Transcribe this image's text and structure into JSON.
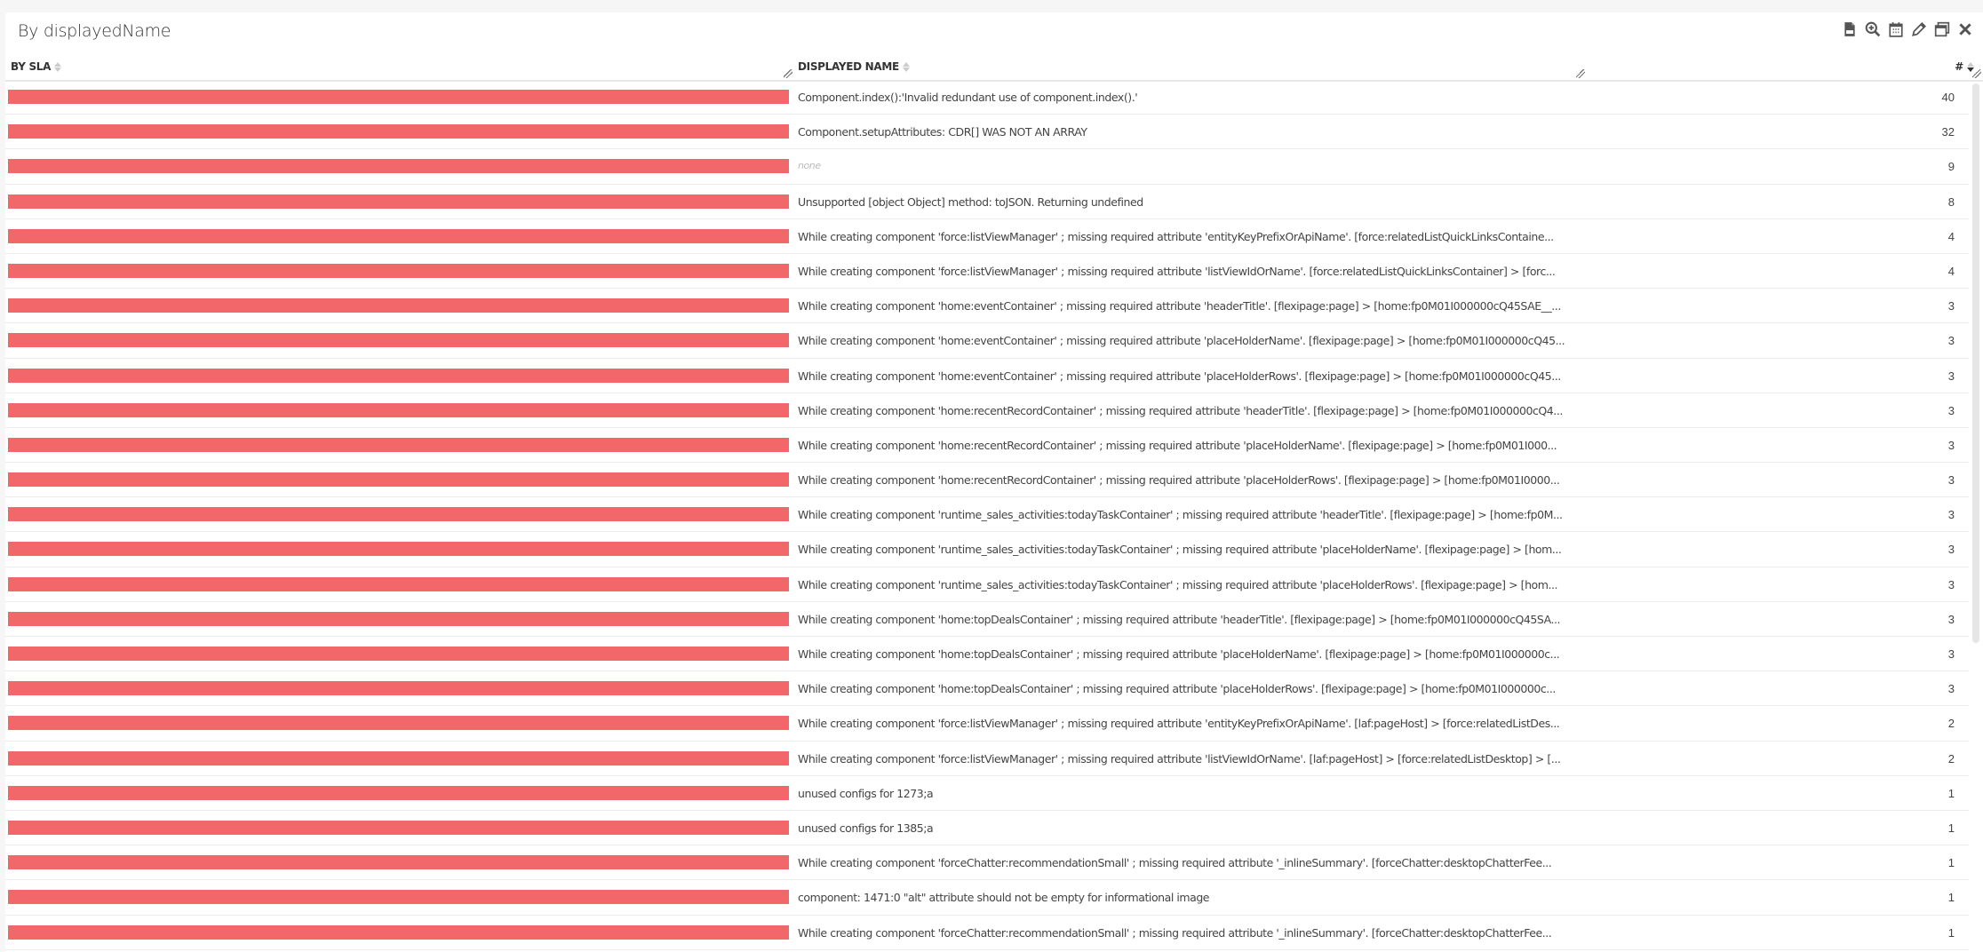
{
  "panel": {
    "title": "By displayedName",
    "toolbar": [
      {
        "name": "csv-export-icon"
      },
      {
        "name": "zoom-in-icon"
      },
      {
        "name": "calendar-icon"
      },
      {
        "name": "pencil-icon"
      },
      {
        "name": "window-icon"
      },
      {
        "name": "close-icon"
      }
    ]
  },
  "table": {
    "columns": {
      "sla": "BY SLA",
      "name": "DISPLAYED NAME",
      "count": "#"
    },
    "bar_color": "#f2686a",
    "rows": [
      {
        "name": "Component.index():'Invalid redundant use of component.index().'",
        "count": "40"
      },
      {
        "name": "Component.setupAttributes: CDR[] WAS NOT AN ARRAY",
        "count": "32"
      },
      {
        "name": "none",
        "count": "9",
        "placeholder": true
      },
      {
        "name": "Unsupported [object Object] method: toJSON. Returning undefined",
        "count": "8"
      },
      {
        "name": "While creating component 'force:listViewManager' ; missing required attribute 'entityKeyPrefixOrApiName'. [force:relatedListQuickLinksContaine...",
        "count": "4"
      },
      {
        "name": "While creating component 'force:listViewManager' ; missing required attribute 'listViewIdOrName'. [force:relatedListQuickLinksContainer] > [forc...",
        "count": "4"
      },
      {
        "name": "While creating component 'home:eventContainer' ; missing required attribute 'headerTitle'. [flexipage:page] > [home:fp0M01I000000cQ45SAE__...",
        "count": "3"
      },
      {
        "name": "While creating component 'home:eventContainer' ; missing required attribute 'placeHolderName'. [flexipage:page] > [home:fp0M01I000000cQ45...",
        "count": "3"
      },
      {
        "name": "While creating component 'home:eventContainer' ; missing required attribute 'placeHolderRows'. [flexipage:page] > [home:fp0M01I000000cQ45...",
        "count": "3"
      },
      {
        "name": "While creating component 'home:recentRecordContainer' ; missing required attribute 'headerTitle'. [flexipage:page] > [home:fp0M01I000000cQ4...",
        "count": "3"
      },
      {
        "name": "While creating component 'home:recentRecordContainer' ; missing required attribute 'placeHolderName'. [flexipage:page] > [home:fp0M01I000...",
        "count": "3"
      },
      {
        "name": "While creating component 'home:recentRecordContainer' ; missing required attribute 'placeHolderRows'. [flexipage:page] > [home:fp0M01I0000...",
        "count": "3"
      },
      {
        "name": "While creating component 'runtime_sales_activities:todayTaskContainer' ; missing required attribute 'headerTitle'. [flexipage:page] > [home:fp0M...",
        "count": "3"
      },
      {
        "name": "While creating component 'runtime_sales_activities:todayTaskContainer' ; missing required attribute 'placeHolderName'. [flexipage:page] > [hom...",
        "count": "3"
      },
      {
        "name": "While creating component 'runtime_sales_activities:todayTaskContainer' ; missing required attribute 'placeHolderRows'. [flexipage:page] > [hom...",
        "count": "3"
      },
      {
        "name": "While creating component 'home:topDealsContainer' ; missing required attribute 'headerTitle'. [flexipage:page] > [home:fp0M01I000000cQ45SA...",
        "count": "3"
      },
      {
        "name": "While creating component 'home:topDealsContainer' ; missing required attribute 'placeHolderName'. [flexipage:page] > [home:fp0M01I000000c...",
        "count": "3"
      },
      {
        "name": "While creating component 'home:topDealsContainer' ; missing required attribute 'placeHolderRows'. [flexipage:page] > [home:fp0M01I000000c...",
        "count": "3"
      },
      {
        "name": "While creating component 'force:listViewManager' ; missing required attribute 'entityKeyPrefixOrApiName'. [laf:pageHost] > [force:relatedListDes...",
        "count": "2"
      },
      {
        "name": "While creating component 'force:listViewManager' ; missing required attribute 'listViewIdOrName'. [laf:pageHost] > [force:relatedListDesktop] > [...",
        "count": "2"
      },
      {
        "name": "unused configs for 1273;a",
        "count": "1"
      },
      {
        "name": "unused configs for 1385;a",
        "count": "1"
      },
      {
        "name": "While creating component 'forceChatter:recommendationSmall' ; missing required attribute '_inlineSummary'. [forceChatter:desktopChatterFee...",
        "count": "1"
      },
      {
        "name": "component: 1471:0 \"alt\" attribute should not be empty for informational image",
        "count": "1"
      },
      {
        "name": "While creating component 'forceChatter:recommendationSmall' ; missing required attribute '_inlineSummary'. [forceChatter:desktopChatterFee...",
        "count": "1"
      }
    ]
  }
}
